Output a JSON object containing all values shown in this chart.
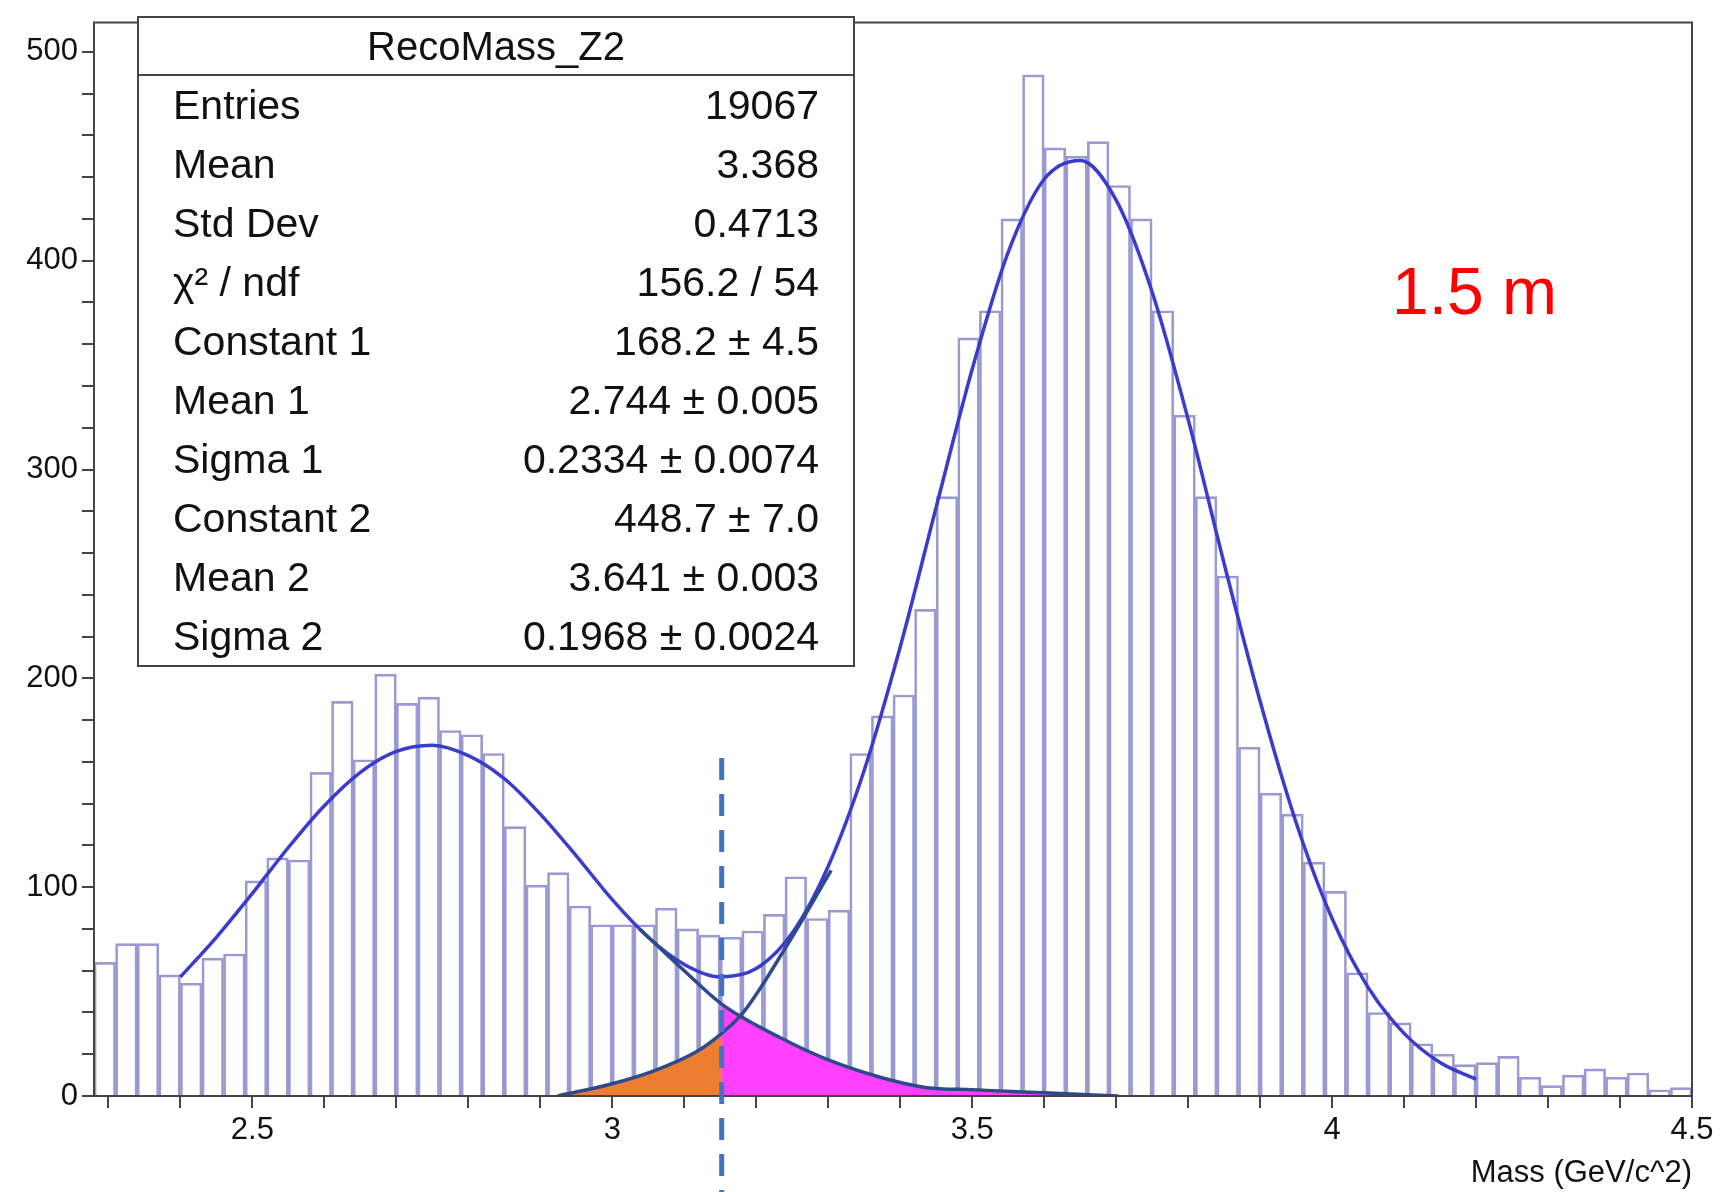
{
  "chart_data": {
    "type": "bar",
    "title": "RecoMass_Z2",
    "xlabel": "Mass (GeV/c^2)",
    "series": [
      {
        "color": "#9a9ad2",
        "x": [
          2.295,
          2.325,
          2.355,
          2.385,
          2.415,
          2.445,
          2.475,
          2.505,
          2.535,
          2.565,
          2.595,
          2.625,
          2.655,
          2.685,
          2.715,
          2.745,
          2.775,
          2.805,
          2.835,
          2.865,
          2.895,
          2.925,
          2.955,
          2.985,
          3.015,
          3.045,
          3.075,
          3.105,
          3.135,
          3.165,
          3.195,
          3.225,
          3.255,
          3.285,
          3.315,
          3.345,
          3.375,
          3.405,
          3.435,
          3.465,
          3.495,
          3.525,
          3.555,
          3.585,
          3.615,
          3.645,
          3.675,
          3.705,
          3.735,
          3.765,
          3.795,
          3.825,
          3.855,
          3.885,
          3.915,
          3.945,
          3.975,
          4.005,
          4.035,
          4.065,
          4.095,
          4.125,
          4.155,
          4.185,
          4.215,
          4.245,
          4.275,
          4.305,
          4.335,
          4.365,
          4.395,
          4.425,
          4.455,
          4.485
        ],
        "values": [
          64,
          73,
          73,
          58,
          54,
          66,
          68,
          103,
          114,
          113,
          155,
          189,
          161,
          202,
          188,
          191,
          175,
          173,
          164,
          129,
          101,
          107,
          91,
          82,
          82,
          82,
          90,
          80,
          77,
          76,
          79,
          87,
          105,
          85,
          89,
          164,
          182,
          192,
          233,
          287,
          363,
          376,
          420,
          489,
          454,
          450,
          457,
          436,
          420,
          376,
          326,
          287,
          249,
          167,
          145,
          135,
          112,
          98,
          59,
          40,
          35,
          25,
          20,
          15,
          16,
          19,
          9,
          5,
          10,
          13,
          9,
          11,
          3,
          4
        ]
      },
      {
        "type": "area",
        "color": "#ed7d31",
        "x": [
          2.924,
          2.996,
          3.057,
          3.118,
          3.152
        ],
        "values": [
          0,
          5.5,
          11.9,
          21.4,
          30
        ]
      },
      {
        "type": "area",
        "color": "#ff40ff",
        "x": [
          3.152,
          3.233,
          3.302,
          3.372,
          3.437,
          3.5,
          3.6,
          3.703
        ],
        "values": [
          44,
          28,
          17,
          9,
          4,
          3,
          1.5,
          0
        ]
      },
      {
        "type": "line",
        "color": "#2e4a8a",
        "x": [
          3.038,
          3.1,
          3.152,
          3.233,
          3.302,
          3.372,
          3.437,
          3.5,
          3.6,
          3.703
        ],
        "values": [
          80,
          60,
          44,
          28,
          17,
          9,
          4,
          3,
          1.5,
          0
        ]
      },
      {
        "type": "line",
        "color": "#2e4a8a",
        "x": [
          2.924,
          2.996,
          3.057,
          3.118,
          3.152,
          3.182,
          3.2425,
          3.304
        ],
        "values": [
          0,
          5.5,
          11.9,
          21.4,
          30,
          40,
          72,
          108
        ]
      },
      {
        "type": "line",
        "color": "#3b3bcc",
        "x": [
          2.4,
          2.45,
          2.5,
          2.55,
          2.6,
          2.65,
          2.7,
          2.75,
          2.8,
          2.85,
          2.9,
          2.95,
          3,
          3.05,
          3.1,
          3.15,
          3.2,
          3.25,
          3.3,
          3.35,
          3.4,
          3.45,
          3.5,
          3.55,
          3.6,
          3.65,
          3.7,
          3.75,
          3.8,
          3.85,
          3.9,
          3.95,
          4,
          4.05,
          4.1,
          4.15,
          4.2
        ],
        "values": [
          57,
          76,
          97,
          119,
          139,
          155,
          165,
          168,
          163,
          152,
          135,
          115,
          94,
          76,
          63,
          57,
          61,
          78,
          110,
          156,
          215,
          282,
          348,
          404,
          439,
          448,
          429,
          385,
          324,
          255,
          189,
          131,
          85,
          52,
          30,
          16,
          8
        ]
      }
    ],
    "ref_lines": [
      {
        "axis": "x",
        "value": 3.152,
        "color": "#4472c4",
        "line_style": "dashed"
      }
    ],
    "xlim": [
      2.28,
      4.5
    ],
    "ylim": [
      0,
      514
    ],
    "xticks": [
      {
        "value": 2.3,
        "label": null
      },
      {
        "value": 2.4,
        "label": null
      },
      2.5,
      {
        "value": 2.6,
        "label": null
      },
      {
        "value": 2.7,
        "label": null
      },
      {
        "value": 2.8,
        "label": null
      },
      {
        "value": 2.9,
        "label": null
      },
      3,
      {
        "value": 3.1,
        "label": null
      },
      {
        "value": 3.2,
        "label": null
      },
      {
        "value": 3.3,
        "label": null
      },
      {
        "value": 3.4,
        "label": null
      },
      3.5,
      {
        "value": 3.6,
        "label": null
      },
      {
        "value": 3.7,
        "label": null
      },
      {
        "value": 3.8,
        "label": null
      },
      {
        "value": 3.9,
        "label": null
      },
      4,
      {
        "value": 4.1,
        "label": null
      },
      {
        "value": 4.2,
        "label": null
      },
      {
        "value": 4.3,
        "label": null
      },
      {
        "value": 4.4,
        "label": null
      },
      4.5
    ],
    "yticks": [
      0,
      {
        "value": 20,
        "label": null
      },
      {
        "value": 40,
        "label": null
      },
      {
        "value": 60,
        "label": null
      },
      {
        "value": 80,
        "label": null
      },
      100,
      {
        "value": 120,
        "label": null
      },
      {
        "value": 140,
        "label": null
      },
      {
        "value": 160,
        "label": null
      },
      {
        "value": 180,
        "label": null
      },
      200,
      {
        "value": 220,
        "label": null
      },
      {
        "value": 240,
        "label": null
      },
      {
        "value": 260,
        "label": null
      },
      {
        "value": 280,
        "label": null
      },
      300,
      {
        "value": 320,
        "label": null
      },
      {
        "value": 340,
        "label": null
      },
      {
        "value": 360,
        "label": null
      },
      {
        "value": 380,
        "label": null
      },
      400,
      {
        "value": 420,
        "label": null
      },
      {
        "value": 440,
        "label": null
      },
      {
        "value": 460,
        "label": null
      },
      {
        "value": 480,
        "label": null
      },
      500
    ],
    "annotations": [
      "1.5 m",
      "Entries",
      "19067",
      "Mean",
      "3.368",
      "Std Dev",
      "0.4713",
      "χ² / ndf",
      "156.2 / 54",
      "Constant 1",
      "168.2 ± 4.5",
      "Mean 1",
      "2.744 ± 0.005",
      "Sigma 1",
      "0.2334 ± 0.0074",
      "Constant 2",
      "448.7 ± 7.0",
      "Mean 2",
      "3.641 ± 0.003",
      "Sigma 2",
      "0.1968 ± 0.0024"
    ]
  }
}
